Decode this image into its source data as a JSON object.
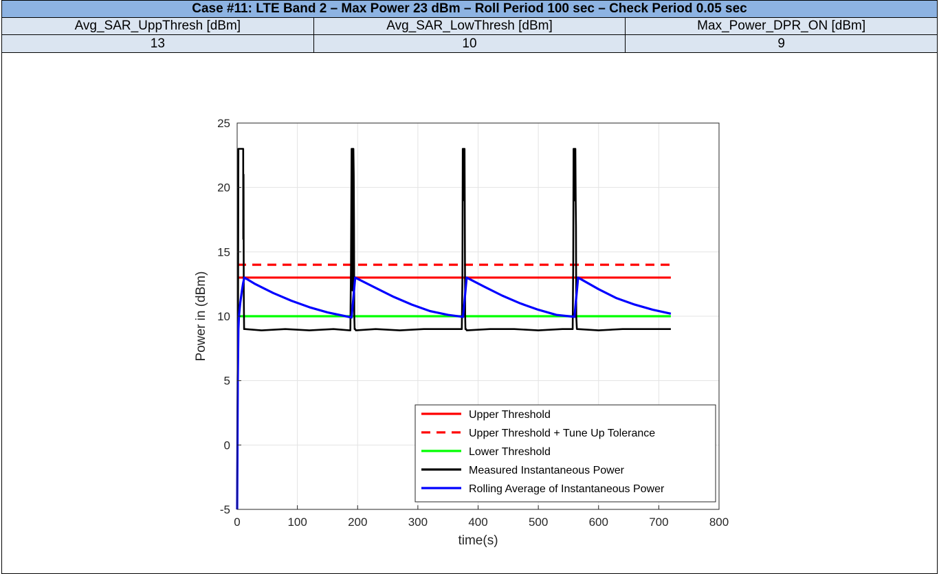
{
  "table": {
    "title": "Case #11: LTE Band 2 – Max Power 23 dBm – Roll Period 100 sec – Check Period 0.05 sec",
    "headers": [
      "Avg_SAR_UppThresh [dBm]",
      "Avg_SAR_LowThresh [dBm]",
      "Max_Power_DPR_ON [dBm]"
    ],
    "values": [
      "13",
      "10",
      "9"
    ]
  },
  "chart_data": {
    "type": "line",
    "xlabel": "time(s)",
    "ylabel": "Power in (dBm)",
    "xlim": [
      0,
      800
    ],
    "ylim": [
      -5,
      25
    ],
    "xticks": [
      0,
      100,
      200,
      300,
      400,
      500,
      600,
      700,
      800
    ],
    "yticks": [
      -5,
      0,
      5,
      10,
      15,
      20,
      25
    ],
    "grid": true,
    "legend_position": "bottom-right",
    "series": [
      {
        "name": "Upper Threshold",
        "color": "#ff0000",
        "style": "solid",
        "x": [
          0,
          720
        ],
        "y": [
          13,
          13
        ]
      },
      {
        "name": "Upper Threshold + Tune Up Tolerance",
        "color": "#ff0000",
        "style": "dashed",
        "x": [
          0,
          720
        ],
        "y": [
          14,
          14
        ]
      },
      {
        "name": "Lower Threshold",
        "color": "#00ff00",
        "style": "solid",
        "x": [
          0,
          720
        ],
        "y": [
          10,
          10
        ]
      },
      {
        "name": "Measured Instantaneous Power",
        "color": "#000000",
        "style": "solid",
        "x": [
          0,
          0.5,
          1,
          1.5,
          2,
          4,
          6,
          8,
          10,
          10.2,
          10.6,
          11,
          11.5,
          12,
          13,
          40,
          80,
          120,
          160,
          188,
          189,
          190,
          190.5,
          191,
          191.5,
          192,
          192.5,
          193,
          193.5,
          194,
          194.5,
          195,
          196,
          197,
          230,
          270,
          310,
          350,
          373,
          374,
          374.5,
          375,
          375.5,
          376,
          376.5,
          377,
          377.5,
          378,
          378.5,
          379,
          380,
          381,
          420,
          460,
          500,
          540,
          557,
          558,
          558.5,
          559,
          559.5,
          560,
          560.5,
          561,
          561.5,
          562,
          562.5,
          563,
          564,
          565,
          600,
          640,
          680,
          720
        ],
        "y": [
          -5,
          0,
          5,
          10,
          23,
          23,
          23,
          23,
          23,
          16,
          21,
          12,
          9,
          9,
          9,
          8.9,
          9,
          8.9,
          9,
          8.9,
          14,
          23,
          19,
          23,
          12,
          23,
          20,
          23,
          21,
          17,
          10,
          9,
          9,
          8.9,
          9,
          8.9,
          9,
          9,
          9,
          13,
          23,
          20,
          23,
          21,
          23,
          19,
          23,
          17,
          10,
          9,
          9,
          8.9,
          9,
          9,
          8.9,
          9,
          9,
          14,
          23,
          20,
          23,
          19,
          23,
          21,
          23,
          19,
          17,
          10,
          9,
          9,
          8.9,
          9,
          9,
          9
        ]
      },
      {
        "name": "Rolling Average of Instantaneous Power",
        "color": "#0000ff",
        "style": "solid",
        "x": [
          0,
          1,
          2,
          3,
          5,
          8,
          10,
          12,
          30,
          60,
          90,
          120,
          150,
          180,
          190,
          196,
          230,
          260,
          290,
          320,
          350,
          375,
          381,
          410,
          440,
          470,
          500,
          530,
          560,
          566,
          600,
          630,
          660,
          690,
          720
        ],
        "y": [
          -5,
          5,
          9,
          10,
          11,
          12,
          12.6,
          13,
          12.5,
          11.8,
          11.2,
          10.7,
          10.3,
          10,
          9.9,
          13,
          12.2,
          11.5,
          10.9,
          10.4,
          10.1,
          9.95,
          13,
          12.3,
          11.6,
          11,
          10.5,
          10.1,
          9.95,
          13,
          12.1,
          11.4,
          10.9,
          10.5,
          10.2
        ]
      }
    ]
  }
}
